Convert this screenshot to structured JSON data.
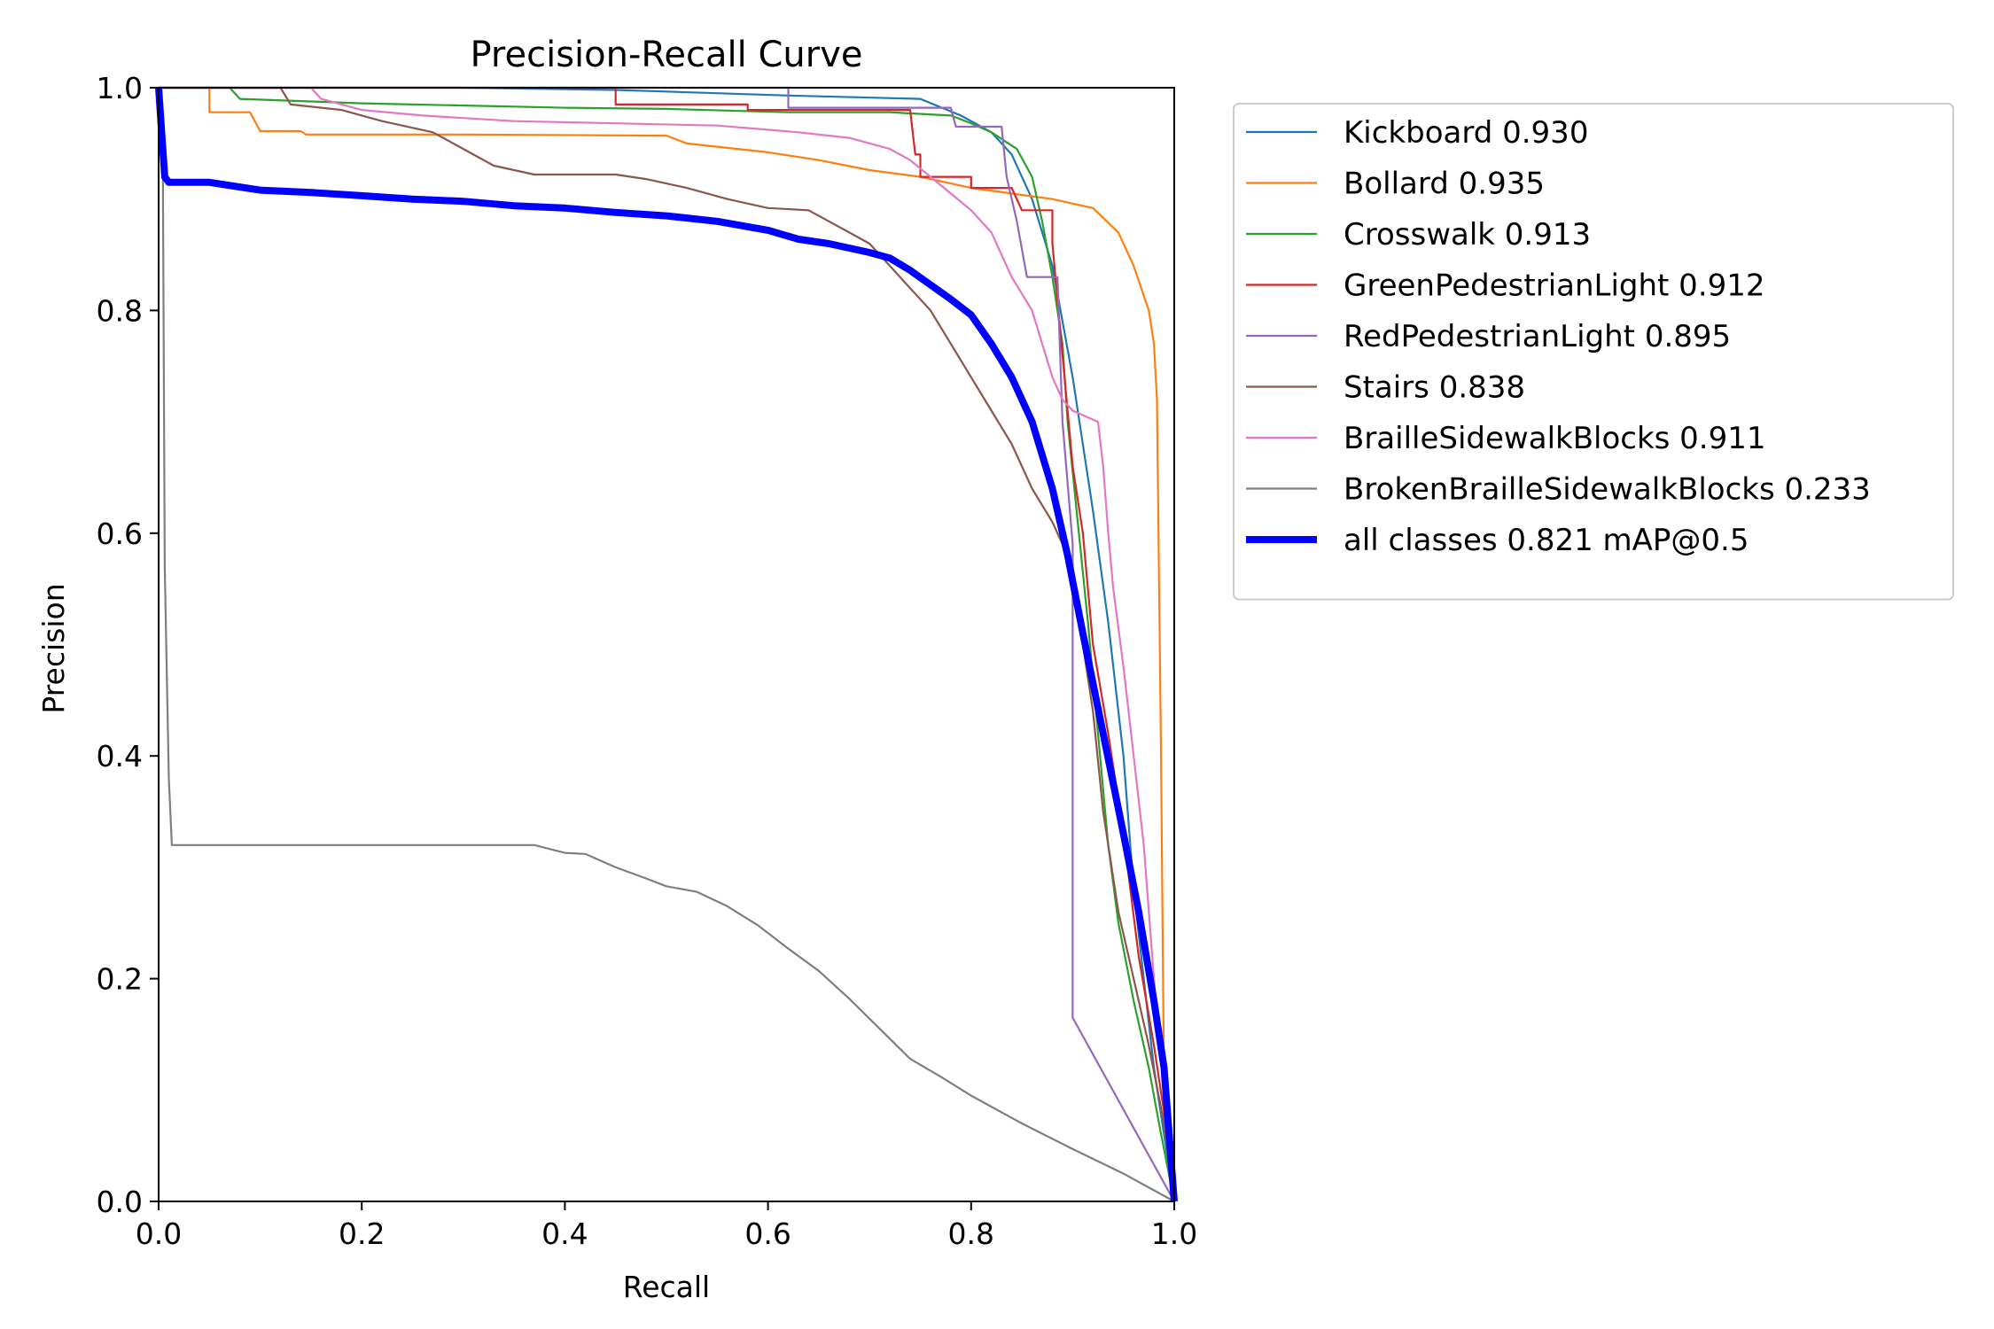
{
  "chart_data": {
    "type": "line",
    "title": "Precision-Recall Curve",
    "xlabel": "Recall",
    "ylabel": "Precision",
    "xlim": [
      0,
      1
    ],
    "ylim": [
      0,
      1
    ],
    "xticks": [
      "0.0",
      "0.2",
      "0.4",
      "0.6",
      "0.8",
      "1.0"
    ],
    "yticks": [
      "0.0",
      "0.2",
      "0.4",
      "0.6",
      "0.8",
      "1.0"
    ],
    "grid": false,
    "legend_position": "outside-right",
    "series": [
      {
        "name": "Kickboard 0.930",
        "color": "#1f77b4",
        "bold": false,
        "points": [
          [
            0,
            1
          ],
          [
            0.3,
            1
          ],
          [
            0.45,
            0.998
          ],
          [
            0.62,
            0.993
          ],
          [
            0.75,
            0.99
          ],
          [
            0.79,
            0.975
          ],
          [
            0.82,
            0.96
          ],
          [
            0.84,
            0.94
          ],
          [
            0.86,
            0.9
          ],
          [
            0.88,
            0.84
          ],
          [
            0.9,
            0.74
          ],
          [
            0.92,
            0.62
          ],
          [
            0.935,
            0.52
          ],
          [
            0.95,
            0.4
          ],
          [
            0.96,
            0.28
          ],
          [
            0.97,
            0.2
          ],
          [
            0.98,
            0.12
          ],
          [
            0.99,
            0.06
          ],
          [
            1,
            0
          ]
        ]
      },
      {
        "name": "Bollard 0.935",
        "color": "#ff7f0e",
        "bold": false,
        "points": [
          [
            0,
            1
          ],
          [
            0.05,
            1
          ],
          [
            0.05,
            0.978
          ],
          [
            0.09,
            0.978
          ],
          [
            0.1,
            0.961
          ],
          [
            0.14,
            0.961
          ],
          [
            0.145,
            0.958
          ],
          [
            0.3,
            0.958
          ],
          [
            0.5,
            0.957
          ],
          [
            0.52,
            0.95
          ],
          [
            0.6,
            0.942
          ],
          [
            0.65,
            0.935
          ],
          [
            0.7,
            0.926
          ],
          [
            0.75,
            0.92
          ],
          [
            0.8,
            0.91
          ],
          [
            0.84,
            0.905
          ],
          [
            0.88,
            0.9
          ],
          [
            0.92,
            0.892
          ],
          [
            0.945,
            0.87
          ],
          [
            0.96,
            0.84
          ],
          [
            0.975,
            0.8
          ],
          [
            0.98,
            0.77
          ],
          [
            0.983,
            0.72
          ],
          [
            0.987,
            0.4
          ],
          [
            0.99,
            0.1
          ],
          [
            1,
            0
          ]
        ]
      },
      {
        "name": "Crosswalk 0.913",
        "color": "#2ca02c",
        "bold": false,
        "points": [
          [
            0,
            1
          ],
          [
            0.07,
            1
          ],
          [
            0.08,
            0.99
          ],
          [
            0.2,
            0.986
          ],
          [
            0.4,
            0.982
          ],
          [
            0.5,
            0.981
          ],
          [
            0.62,
            0.978
          ],
          [
            0.72,
            0.978
          ],
          [
            0.78,
            0.975
          ],
          [
            0.8,
            0.968
          ],
          [
            0.82,
            0.96
          ],
          [
            0.845,
            0.945
          ],
          [
            0.86,
            0.92
          ],
          [
            0.87,
            0.88
          ],
          [
            0.88,
            0.83
          ],
          [
            0.89,
            0.77
          ],
          [
            0.895,
            0.7
          ],
          [
            0.905,
            0.61
          ],
          [
            0.915,
            0.52
          ],
          [
            0.925,
            0.42
          ],
          [
            0.935,
            0.32
          ],
          [
            0.945,
            0.25
          ],
          [
            0.96,
            0.18
          ],
          [
            0.975,
            0.12
          ],
          [
            0.985,
            0.07
          ],
          [
            1,
            0
          ]
        ]
      },
      {
        "name": "GreenPedestrianLight 0.912",
        "color": "#d62728",
        "bold": false,
        "points": [
          [
            0,
            1
          ],
          [
            0.45,
            1
          ],
          [
            0.45,
            0.985
          ],
          [
            0.58,
            0.985
          ],
          [
            0.58,
            0.98
          ],
          [
            0.74,
            0.98
          ],
          [
            0.745,
            0.94
          ],
          [
            0.75,
            0.94
          ],
          [
            0.75,
            0.92
          ],
          [
            0.8,
            0.92
          ],
          [
            0.8,
            0.91
          ],
          [
            0.84,
            0.91
          ],
          [
            0.85,
            0.89
          ],
          [
            0.88,
            0.89
          ],
          [
            0.88,
            0.86
          ],
          [
            0.89,
            0.76
          ],
          [
            0.9,
            0.66
          ],
          [
            0.91,
            0.6
          ],
          [
            0.92,
            0.5
          ],
          [
            0.935,
            0.42
          ],
          [
            0.95,
            0.33
          ],
          [
            0.965,
            0.22
          ],
          [
            0.98,
            0.14
          ],
          [
            0.99,
            0.08
          ],
          [
            1,
            0
          ]
        ]
      },
      {
        "name": "RedPedestrianLight 0.895",
        "color": "#9467bd",
        "bold": false,
        "points": [
          [
            0,
            1
          ],
          [
            0.62,
            1
          ],
          [
            0.62,
            0.982
          ],
          [
            0.78,
            0.982
          ],
          [
            0.785,
            0.965
          ],
          [
            0.83,
            0.965
          ],
          [
            0.835,
            0.92
          ],
          [
            0.845,
            0.88
          ],
          [
            0.855,
            0.83
          ],
          [
            0.885,
            0.83
          ],
          [
            0.89,
            0.7
          ],
          [
            0.9,
            0.59
          ],
          [
            0.9,
            0.165
          ],
          [
            1,
            0
          ]
        ]
      },
      {
        "name": "Stairs 0.838",
        "color": "#8c564b",
        "bold": false,
        "points": [
          [
            0,
            1
          ],
          [
            0.12,
            1
          ],
          [
            0.13,
            0.985
          ],
          [
            0.18,
            0.98
          ],
          [
            0.22,
            0.97
          ],
          [
            0.27,
            0.96
          ],
          [
            0.3,
            0.945
          ],
          [
            0.33,
            0.93
          ],
          [
            0.37,
            0.922
          ],
          [
            0.45,
            0.922
          ],
          [
            0.48,
            0.918
          ],
          [
            0.52,
            0.91
          ],
          [
            0.56,
            0.9
          ],
          [
            0.6,
            0.892
          ],
          [
            0.64,
            0.89
          ],
          [
            0.68,
            0.87
          ],
          [
            0.7,
            0.86
          ],
          [
            0.72,
            0.84
          ],
          [
            0.74,
            0.82
          ],
          [
            0.76,
            0.8
          ],
          [
            0.78,
            0.77
          ],
          [
            0.8,
            0.74
          ],
          [
            0.82,
            0.71
          ],
          [
            0.84,
            0.68
          ],
          [
            0.86,
            0.64
          ],
          [
            0.88,
            0.61
          ],
          [
            0.9,
            0.57
          ],
          [
            0.91,
            0.5
          ],
          [
            0.92,
            0.44
          ],
          [
            0.93,
            0.35
          ],
          [
            0.945,
            0.26
          ],
          [
            0.96,
            0.2
          ],
          [
            0.975,
            0.14
          ],
          [
            0.99,
            0.07
          ],
          [
            1,
            0
          ]
        ]
      },
      {
        "name": "BrailleSidewalkBlocks 0.911",
        "color": "#e377c2",
        "bold": false,
        "points": [
          [
            0,
            1
          ],
          [
            0.15,
            1
          ],
          [
            0.16,
            0.99
          ],
          [
            0.2,
            0.98
          ],
          [
            0.26,
            0.975
          ],
          [
            0.35,
            0.97
          ],
          [
            0.45,
            0.968
          ],
          [
            0.55,
            0.966
          ],
          [
            0.63,
            0.96
          ],
          [
            0.68,
            0.955
          ],
          [
            0.72,
            0.945
          ],
          [
            0.74,
            0.935
          ],
          [
            0.76,
            0.92
          ],
          [
            0.78,
            0.905
          ],
          [
            0.8,
            0.89
          ],
          [
            0.82,
            0.87
          ],
          [
            0.84,
            0.83
          ],
          [
            0.86,
            0.8
          ],
          [
            0.87,
            0.77
          ],
          [
            0.88,
            0.74
          ],
          [
            0.89,
            0.72
          ],
          [
            0.9,
            0.71
          ],
          [
            0.925,
            0.7
          ],
          [
            0.93,
            0.66
          ],
          [
            0.935,
            0.6
          ],
          [
            0.94,
            0.55
          ],
          [
            0.95,
            0.48
          ],
          [
            0.96,
            0.4
          ],
          [
            0.97,
            0.32
          ],
          [
            0.98,
            0.2
          ],
          [
            0.99,
            0.1
          ],
          [
            1,
            0
          ]
        ]
      },
      {
        "name": "BrokenBrailleSidewalkBlocks 0.233",
        "color": "#7f7f7f",
        "bold": false,
        "points": [
          [
            0,
            1
          ],
          [
            0.004,
            0.96
          ],
          [
            0.006,
            0.57
          ],
          [
            0.01,
            0.38
          ],
          [
            0.013,
            0.32
          ],
          [
            0.37,
            0.32
          ],
          [
            0.4,
            0.313
          ],
          [
            0.42,
            0.312
          ],
          [
            0.45,
            0.3
          ],
          [
            0.48,
            0.29
          ],
          [
            0.5,
            0.283
          ],
          [
            0.53,
            0.278
          ],
          [
            0.56,
            0.265
          ],
          [
            0.59,
            0.248
          ],
          [
            0.62,
            0.227
          ],
          [
            0.65,
            0.207
          ],
          [
            0.68,
            0.182
          ],
          [
            0.71,
            0.155
          ],
          [
            0.74,
            0.128
          ],
          [
            0.77,
            0.112
          ],
          [
            0.8,
            0.095
          ],
          [
            0.85,
            0.07
          ],
          [
            0.9,
            0.047
          ],
          [
            0.95,
            0.025
          ],
          [
            1,
            0
          ]
        ]
      },
      {
        "name": "all classes 0.821 mAP@0.5",
        "color": "#0000ff",
        "bold": true,
        "points": [
          [
            0,
            1
          ],
          [
            0.003,
            0.96
          ],
          [
            0.006,
            0.92
          ],
          [
            0.01,
            0.915
          ],
          [
            0.05,
            0.915
          ],
          [
            0.1,
            0.908
          ],
          [
            0.15,
            0.906
          ],
          [
            0.2,
            0.903
          ],
          [
            0.25,
            0.9
          ],
          [
            0.3,
            0.898
          ],
          [
            0.35,
            0.894
          ],
          [
            0.4,
            0.892
          ],
          [
            0.45,
            0.888
          ],
          [
            0.5,
            0.885
          ],
          [
            0.55,
            0.88
          ],
          [
            0.6,
            0.872
          ],
          [
            0.63,
            0.864
          ],
          [
            0.66,
            0.86
          ],
          [
            0.68,
            0.856
          ],
          [
            0.7,
            0.852
          ],
          [
            0.72,
            0.847
          ],
          [
            0.74,
            0.836
          ],
          [
            0.76,
            0.823
          ],
          [
            0.78,
            0.81
          ],
          [
            0.8,
            0.796
          ],
          [
            0.82,
            0.77
          ],
          [
            0.84,
            0.74
          ],
          [
            0.86,
            0.7
          ],
          [
            0.88,
            0.64
          ],
          [
            0.895,
            0.58
          ],
          [
            0.91,
            0.51
          ],
          [
            0.93,
            0.42
          ],
          [
            0.95,
            0.33
          ],
          [
            0.965,
            0.26
          ],
          [
            0.98,
            0.18
          ],
          [
            0.99,
            0.12
          ],
          [
            1,
            0
          ]
        ]
      }
    ]
  }
}
